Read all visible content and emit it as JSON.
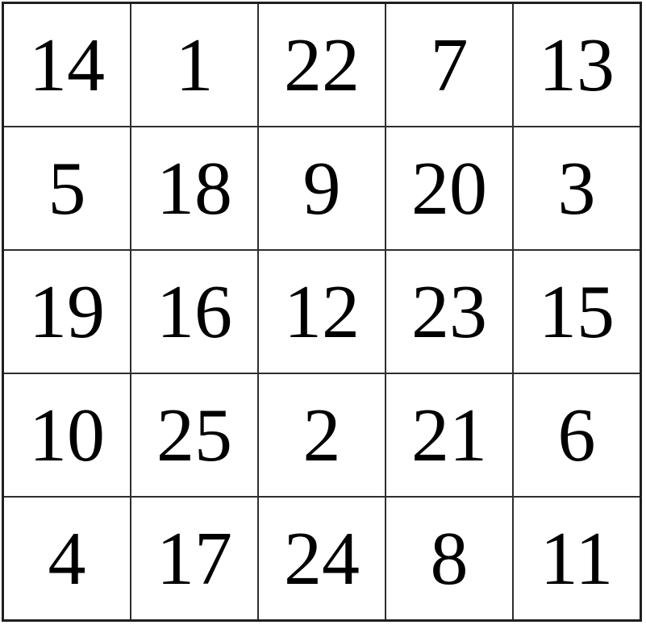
{
  "grid": {
    "rows": 5,
    "cols": 5,
    "cells": [
      [
        "14",
        "1",
        "22",
        "7",
        "13"
      ],
      [
        "5",
        "18",
        "9",
        "20",
        "3"
      ],
      [
        "19",
        "16",
        "12",
        "23",
        "15"
      ],
      [
        "10",
        "25",
        "2",
        "21",
        "6"
      ],
      [
        "4",
        "17",
        "24",
        "8",
        "11"
      ]
    ],
    "colors": {
      "cell_background": "#ffffff",
      "grid_line": "#2e2e2e",
      "outer_border": "#1f1f1f",
      "text": "#000000"
    }
  }
}
